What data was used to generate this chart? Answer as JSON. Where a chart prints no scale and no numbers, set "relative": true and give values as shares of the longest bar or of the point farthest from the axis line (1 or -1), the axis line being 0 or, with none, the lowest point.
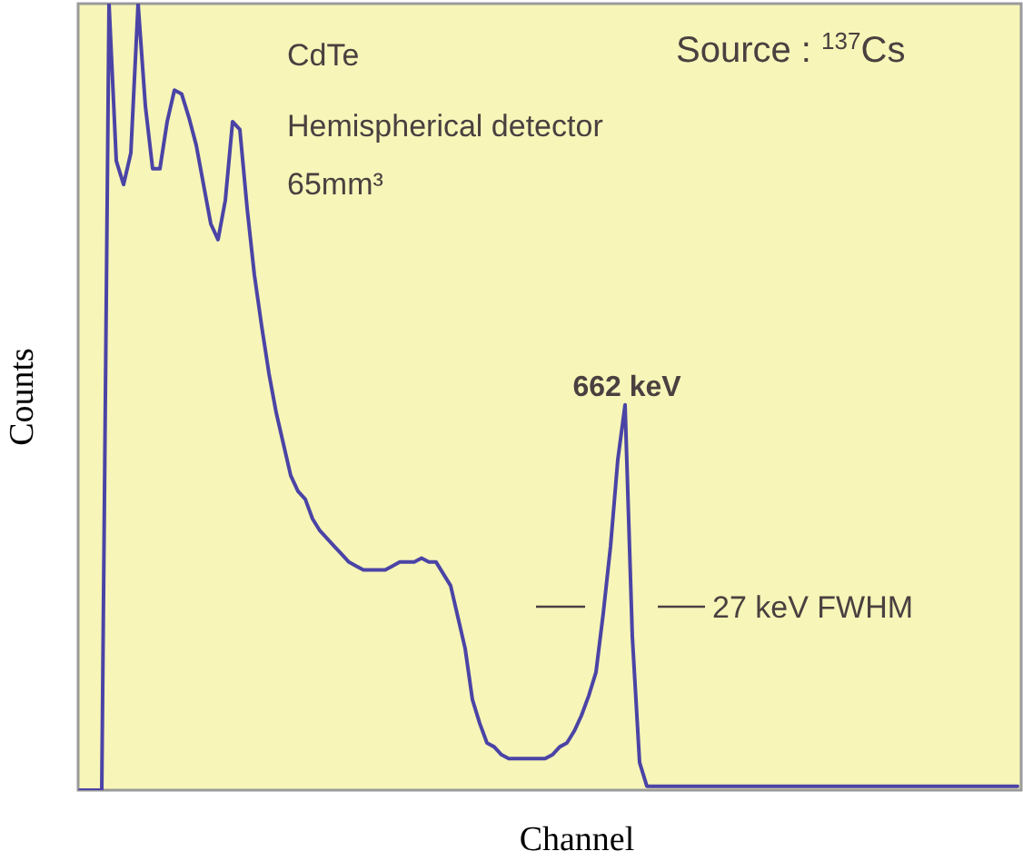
{
  "chart_data": {
    "type": "line",
    "relative": true,
    "xlabel": "Channel",
    "ylabel": "Counts",
    "color": "#4b44a6",
    "categories": [
      null,
      null,
      null,
      null,
      null,
      null,
      null,
      null,
      null,
      null,
      null,
      null,
      null,
      null,
      null,
      null,
      null,
      null,
      null,
      null,
      null,
      null,
      null,
      null,
      null,
      null,
      null,
      null,
      null,
      null,
      null,
      null,
      null,
      null,
      null,
      null,
      null,
      null,
      null,
      null,
      null,
      null,
      null,
      null,
      null,
      null,
      null,
      null,
      null,
      null,
      null,
      null,
      null,
      null,
      null,
      null,
      null,
      null,
      null,
      null,
      null,
      null,
      null,
      null,
      null,
      null,
      null,
      null,
      null,
      null,
      null,
      null,
      null,
      null,
      null,
      null,
      null,
      null,
      null,
      null,
      null,
      null,
      null,
      null,
      null,
      null,
      null,
      null,
      null,
      null,
      null,
      null,
      null,
      null,
      null,
      null,
      null,
      null,
      null,
      null,
      null,
      null,
      null,
      null,
      null,
      null,
      null,
      null,
      null,
      null,
      null,
      null,
      null,
      null,
      null,
      null,
      null,
      null,
      null,
      null,
      null,
      null,
      null,
      null,
      null,
      null,
      null,
      null,
      null,
      null
    ],
    "values": [
      0,
      0,
      0,
      0,
      1,
      0.8,
      0.77,
      0.81,
      1,
      0.87,
      0.79,
      0.79,
      0.85,
      0.89,
      0.885,
      0.855,
      0.82,
      0.77,
      0.72,
      0.7,
      0.75,
      0.85,
      0.84,
      0.74,
      0.655,
      0.59,
      0.53,
      0.48,
      0.44,
      0.4,
      0.38,
      0.37,
      0.345,
      0.33,
      0.32,
      0.31,
      0.3,
      0.29,
      0.285,
      0.28,
      0.28,
      0.28,
      0.28,
      0.285,
      0.29,
      0.29,
      0.29,
      0.295,
      0.29,
      0.29,
      0.275,
      0.26,
      0.22,
      0.18,
      0.115,
      0.085,
      0.06,
      0.055,
      0.045,
      0.04,
      0.04,
      0.04,
      0.04,
      0.04,
      0.04,
      0.045,
      0.055,
      0.06,
      0.075,
      0.095,
      0.12,
      0.15,
      0.225,
      0.31,
      0.42,
      0.49,
      0.195,
      0.035,
      0.005,
      0.005,
      0.005,
      0.005,
      0.005,
      0.005,
      0.005,
      0.005,
      0.005,
      0.005,
      0.005,
      0.005,
      0.005,
      0.005,
      0.005,
      0.005,
      0.005,
      0.005,
      0.005,
      0.005,
      0.005,
      0.005,
      0.005,
      0.005,
      0.005,
      0.005,
      0.005,
      0.005,
      0.005,
      0.005,
      0.005,
      0.005,
      0.005,
      0.005,
      0.005,
      0.005,
      0.005,
      0.005,
      0.005,
      0.005,
      0.005,
      0.005,
      0.005,
      0.005,
      0.005,
      0.005,
      0.005,
      0.005,
      0.005,
      0.005,
      0.005,
      0.005
    ],
    "annotations": [
      "CdTe",
      "Hemispherical detector",
      "65mm³",
      "Source : $^{137}$Cs",
      "662 keV",
      "27 keV FWHM"
    ]
  }
}
